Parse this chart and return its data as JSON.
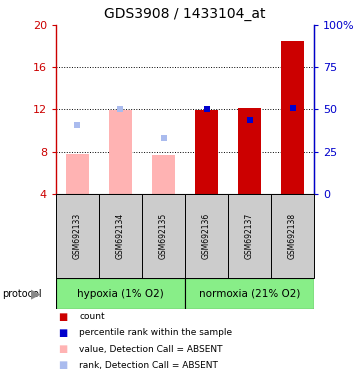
{
  "title": "GDS3908 / 1433104_at",
  "samples": [
    "GSM692133",
    "GSM692134",
    "GSM692135",
    "GSM692136",
    "GSM692137",
    "GSM692138"
  ],
  "ylim_left": [
    4,
    20
  ],
  "ylim_right": [
    0,
    100
  ],
  "yticks_left": [
    4,
    8,
    12,
    16,
    20
  ],
  "ytick_labels_left": [
    "4",
    "8",
    "12",
    "16",
    "20"
  ],
  "yticks_right": [
    0,
    25,
    50,
    75,
    100
  ],
  "ytick_labels_right": [
    "0",
    "25",
    "50",
    "75",
    "100%"
  ],
  "bar_values": [
    7.8,
    11.9,
    7.7,
    11.9,
    12.1,
    18.5
  ],
  "bar_bottom": 4,
  "bar_colors_absent": "#FFB3B3",
  "bar_colors_present": "#CC0000",
  "absent_mask": [
    true,
    true,
    true,
    false,
    false,
    false
  ],
  "rank_values_left_axis": [
    10.5,
    12.0,
    9.3,
    12.0,
    11.0,
    12.1
  ],
  "rank_absent_mask": [
    true,
    true,
    true,
    false,
    false,
    false
  ],
  "rank_color_absent": "#AABBEE",
  "rank_color_present": "#0000CC",
  "group1_label": "hypoxia (1% O2)",
  "group2_label": "normoxia (21% O2)",
  "group1_indices": [
    0,
    1,
    2
  ],
  "group2_indices": [
    3,
    4,
    5
  ],
  "group_color": "#88EE88",
  "protocol_label": "protocol",
  "legend_items": [
    {
      "color": "#CC0000",
      "label": "count"
    },
    {
      "color": "#0000CC",
      "label": "percentile rank within the sample"
    },
    {
      "color": "#FFB3B3",
      "label": "value, Detection Call = ABSENT"
    },
    {
      "color": "#AABBEE",
      "label": "rank, Detection Call = ABSENT"
    }
  ],
  "title_fontsize": 10,
  "axis_color_left": "#CC0000",
  "axis_color_right": "#0000CC",
  "bar_width": 0.55,
  "rank_marker_size": 4,
  "bg_color": "white",
  "grid_color": "black",
  "sample_box_color": "#CCCCCC",
  "spine_color": "#333333"
}
